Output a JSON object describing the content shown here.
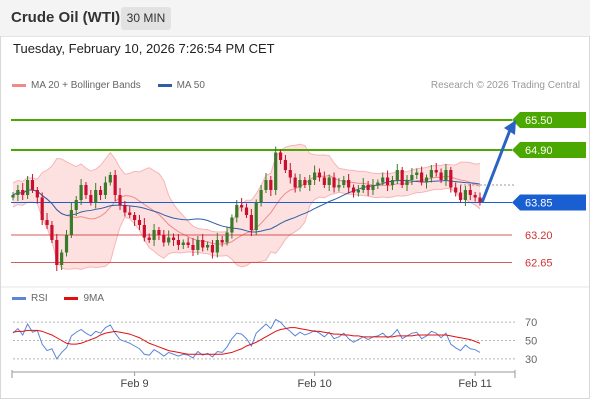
{
  "header": {
    "title": "Crude Oil (WTI)",
    "interval": "30 MIN"
  },
  "timestamp": "Tuesday, February 10, 2026 7:26:54 PM CET",
  "legend": {
    "main": [
      {
        "label": "MA 20 + Bollinger Bands",
        "color": "#f08a8a"
      },
      {
        "label": "MA 50",
        "color": "#2f5ea6"
      }
    ],
    "rsi": [
      {
        "label": "RSI",
        "color": "#5b86d8"
      },
      {
        "label": "9MA",
        "color": "#e01010"
      }
    ]
  },
  "credit": "Research © 2026 Trading Central",
  "colors": {
    "up": "#3a7a2a",
    "down": "#c8102e",
    "resistance": "#4aa800",
    "support": "#cc3333",
    "pivot": "#1a5fd1",
    "arrow": "#2a63c4"
  },
  "chart_data": [
    {
      "type": "candlestick",
      "ylim": [
        62.3,
        66.0
      ],
      "x_labels": [
        "Feb 9",
        "Feb 10",
        "Feb 11"
      ],
      "x_label_index": [
        25,
        62,
        95
      ],
      "num_bars": 97,
      "levels": [
        {
          "label": "65.50",
          "value": 65.5,
          "kind": "resistance",
          "style": "tag"
        },
        {
          "label": "64.90",
          "value": 64.9,
          "kind": "resistance",
          "style": "tag"
        },
        {
          "label": "63.85",
          "value": 63.85,
          "kind": "pivot",
          "style": "tag"
        },
        {
          "label": "63.20",
          "value": 63.2,
          "kind": "support",
          "style": "text"
        },
        {
          "label": "62.65",
          "value": 62.65,
          "kind": "support",
          "style": "text"
        }
      ],
      "forecast_arrow": {
        "from": 63.85,
        "to": 65.5
      },
      "close_path": [
        64.0,
        64.1,
        64.0,
        64.3,
        64.1,
        63.95,
        63.5,
        63.4,
        63.1,
        62.6,
        62.85,
        63.2,
        63.7,
        63.9,
        64.2,
        64.0,
        63.85,
        64.1,
        64.0,
        64.25,
        64.4,
        64.0,
        63.8,
        63.65,
        63.6,
        63.5,
        63.4,
        63.15,
        63.1,
        63.3,
        63.2,
        63.05,
        63.15,
        63.1,
        63.0,
        63.05,
        63.0,
        62.9,
        63.1,
        62.95,
        63.0,
        62.85,
        63.1,
        63.05,
        63.25,
        63.55,
        63.8,
        63.75,
        63.6,
        63.3,
        63.85,
        64.1,
        64.3,
        64.1,
        64.85,
        64.7,
        64.5,
        64.35,
        64.15,
        64.3,
        64.2,
        64.3,
        64.45,
        64.35,
        64.2,
        64.35,
        64.15,
        64.2,
        64.3,
        64.15,
        64.05,
        64.1,
        64.2,
        64.1,
        64.2,
        64.25,
        64.35,
        64.2,
        64.3,
        64.5,
        64.2,
        64.3,
        64.4,
        64.45,
        64.25,
        64.35,
        64.5,
        64.45,
        64.3,
        64.5,
        64.15,
        64.05,
        63.9,
        64.1,
        64.0,
        63.95,
        63.85
      ]
    },
    {
      "type": "line",
      "ylim": [
        20,
        80
      ],
      "y_ticks": [
        70,
        50,
        30
      ],
      "series": [
        {
          "name": "RSI",
          "values": [
            58,
            63,
            56,
            68,
            59,
            61,
            46,
            39,
            41,
            30,
            37,
            42,
            55,
            59,
            62,
            58,
            55,
            60,
            58,
            64,
            67,
            58,
            51,
            49,
            47,
            44,
            41,
            35,
            34,
            40,
            37,
            33,
            37,
            35,
            33,
            35,
            34,
            31,
            38,
            34,
            36,
            32,
            38,
            37,
            43,
            52,
            58,
            57,
            52,
            44,
            58,
            63,
            68,
            63,
            73,
            70,
            64,
            60,
            55,
            59,
            56,
            58,
            61,
            58,
            54,
            59,
            52,
            54,
            58,
            52,
            48,
            51,
            54,
            51,
            54,
            55,
            58,
            53,
            56,
            62,
            52,
            55,
            58,
            59,
            52,
            55,
            60,
            58,
            53,
            58,
            46,
            42,
            39,
            45,
            41,
            40,
            37
          ]
        },
        {
          "name": "9MA",
          "values": [
            59,
            60,
            60,
            61,
            61,
            61,
            60,
            58,
            56,
            53,
            50,
            47,
            46,
            46,
            47,
            49,
            51,
            53,
            56,
            58,
            59,
            60,
            59,
            58,
            57,
            55,
            53,
            50,
            47,
            45,
            43,
            41,
            39,
            38,
            37,
            36,
            35,
            35,
            35,
            35,
            35,
            35,
            35,
            35,
            36,
            37,
            39,
            41,
            44,
            46,
            48,
            51,
            54,
            57,
            60,
            62,
            63,
            64,
            64,
            63,
            62,
            61,
            60,
            60,
            59,
            58,
            57,
            57,
            56,
            56,
            55,
            55,
            54,
            54,
            54,
            54,
            54,
            54,
            54,
            55,
            55,
            55,
            55,
            56,
            56,
            56,
            56,
            56,
            56,
            56,
            55,
            54,
            53,
            52,
            51,
            49,
            47
          ]
        }
      ]
    }
  ]
}
